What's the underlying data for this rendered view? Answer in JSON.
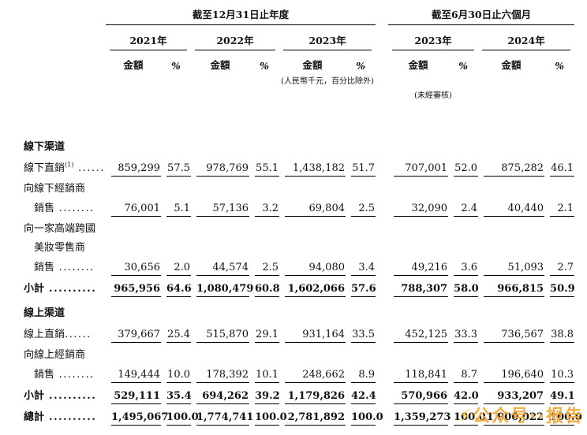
{
  "colors": {
    "background": "#ffffff",
    "text": "#111111",
    "watermark": "#f2a93b"
  },
  "header": {
    "annual_title": "截至12月31日止年度",
    "interim_title": "截至6月30日止六個月",
    "years": [
      "2021年",
      "2022年",
      "2023年",
      "2023年",
      "2024年"
    ],
    "amount_label": "金額",
    "pct_label": "%",
    "unit_note": "(人民幣千元，百分比除外)",
    "unaudited_note": "(未經審核)"
  },
  "rows": [
    {
      "type": "section",
      "label": "線下渠道"
    },
    {
      "type": "data",
      "label": "線下直銷",
      "sup": "(1)",
      "dots": " ......",
      "v": [
        "859,299",
        "57.5",
        "978,769",
        "55.1",
        "1,438,182",
        "51.7",
        "707,001",
        "52.0",
        "875,282",
        "46.1"
      ]
    },
    {
      "type": "label",
      "label": "向線下經銷商"
    },
    {
      "type": "data",
      "label": "銷售",
      "dots": " ........",
      "indent": true,
      "v": [
        "76,001",
        "5.1",
        "57,136",
        "3.2",
        "69,804",
        "2.5",
        "32,090",
        "2.4",
        "40,440",
        "2.1"
      ]
    },
    {
      "type": "label",
      "label": "向一家高端跨國"
    },
    {
      "type": "label",
      "label": "美妝零售商",
      "indent": true
    },
    {
      "type": "data",
      "label": "銷售",
      "dots": " ........",
      "indent": true,
      "v": [
        "30,656",
        "2.0",
        "44,574",
        "2.5",
        "94,080",
        "3.4",
        "49,216",
        "3.6",
        "51,093",
        "2.7"
      ]
    },
    {
      "type": "data",
      "label": "小計",
      "dots": " ..........",
      "bold": true,
      "v": [
        "965,956",
        "64.6",
        "1,080,479",
        "60.8",
        "1,602,066",
        "57.6",
        "788,307",
        "58.0",
        "966,815",
        "50.9"
      ]
    },
    {
      "type": "section",
      "label": "線上渠道"
    },
    {
      "type": "data",
      "label": "線上直銷",
      "dots": "......",
      "v": [
        "379,667",
        "25.4",
        "515,870",
        "29.1",
        "931,164",
        "33.5",
        "452,125",
        "33.3",
        "736,567",
        "38.8"
      ]
    },
    {
      "type": "label",
      "label": "向線上經銷商"
    },
    {
      "type": "data",
      "label": "銷售",
      "dots": " ........",
      "indent": true,
      "v": [
        "149,444",
        "10.0",
        "178,392",
        "10.1",
        "248,662",
        "8.9",
        "118,841",
        "8.7",
        "196,640",
        "10.3"
      ]
    },
    {
      "type": "data",
      "label": "小計",
      "dots": " ..........",
      "bold": true,
      "v": [
        "529,111",
        "35.4",
        "694,262",
        "39.2",
        "1,179,826",
        "42.4",
        "570,966",
        "42.0",
        "933,207",
        "49.1"
      ]
    },
    {
      "type": "data",
      "label": "總計",
      "dots": " ..........",
      "bold": true,
      "v": [
        "1,495,067",
        "100.0",
        "1,774,741",
        "100.0",
        "2,781,892",
        "100.0",
        "1,359,273",
        "100.0",
        "1,900,022",
        "100.0"
      ]
    }
  ],
  "watermark": {
    "icon": "⚡",
    "text": "公众号",
    "sep": "··",
    "suffix": "报告"
  }
}
